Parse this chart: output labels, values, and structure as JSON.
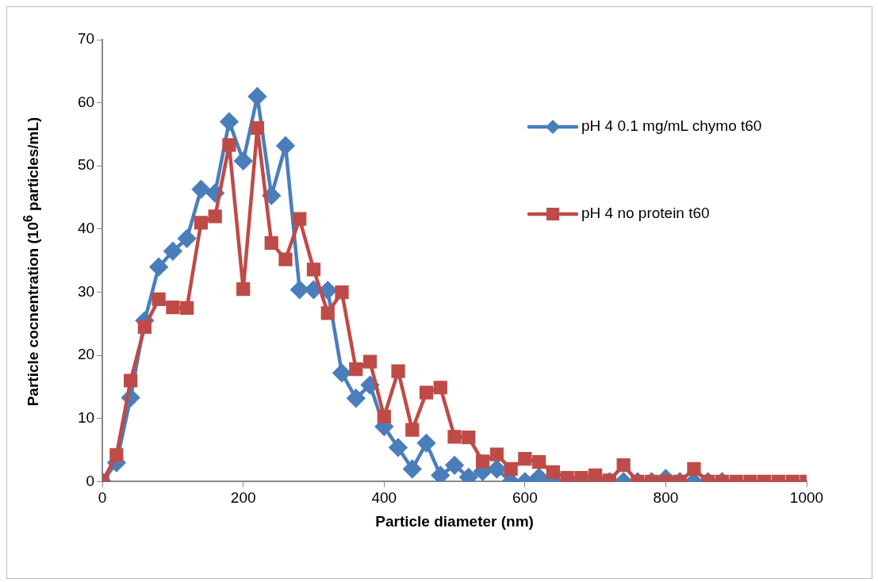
{
  "chart_data": {
    "type": "line",
    "xlabel": "Particle diameter (nm)",
    "ylabel": "Particle cocnentration (10$^{6}$ particles/mL)",
    "x": [
      0,
      20,
      40,
      60,
      80,
      100,
      120,
      140,
      160,
      180,
      200,
      220,
      240,
      260,
      280,
      300,
      320,
      340,
      360,
      380,
      400,
      420,
      440,
      460,
      480,
      500,
      520,
      540,
      560,
      580,
      600,
      620,
      640,
      660,
      680,
      700,
      720,
      740,
      760,
      780,
      800,
      820,
      840,
      860,
      880,
      900,
      920,
      940,
      960,
      980,
      1000
    ],
    "series": [
      {
        "name": "pH 4 0.1 mg/mL chymo t60",
        "color": "#4a7ebb",
        "marker": "diamond",
        "values": [
          0,
          3,
          13.3,
          25.5,
          34,
          36.5,
          38.5,
          46.3,
          45.7,
          57,
          50.8,
          61,
          45.3,
          53.2,
          30.4,
          30.4,
          30.3,
          17.2,
          13.2,
          15.3,
          8.7,
          5.4,
          2,
          6.1,
          1,
          2.6,
          0.7,
          1.6,
          2,
          0,
          0,
          0.7,
          0,
          0,
          0,
          0,
          0,
          0,
          0,
          0,
          0.5,
          0,
          0,
          0,
          0,
          null,
          null,
          null,
          null,
          null,
          null
        ]
      },
      {
        "name": "pH 4 no protein t60",
        "color": "#be4b48",
        "marker": "square",
        "values": [
          0,
          4.2,
          16,
          24.5,
          28.9,
          27.6,
          27.5,
          41,
          42,
          53.3,
          30.5,
          56,
          37.8,
          35.2,
          41.6,
          33.6,
          26.7,
          30,
          17.8,
          19,
          10.3,
          17.5,
          8.2,
          14.1,
          14.9,
          7.1,
          7,
          3.2,
          4.3,
          2,
          3.6,
          3.1,
          1.5,
          0.6,
          0.6,
          1,
          0.2,
          2.6,
          0,
          0,
          0,
          0,
          2,
          0,
          0,
          0,
          0,
          0,
          0,
          0,
          0
        ]
      }
    ],
    "xlim": [
      0,
      1000
    ],
    "xticks": [
      0,
      200,
      400,
      600,
      800,
      1000
    ],
    "ylim": [
      0,
      70
    ],
    "yticks": [
      0,
      10,
      20,
      30,
      40,
      50,
      60,
      70
    ],
    "grid": false,
    "legend": "top right",
    "line_style": "solid"
  }
}
